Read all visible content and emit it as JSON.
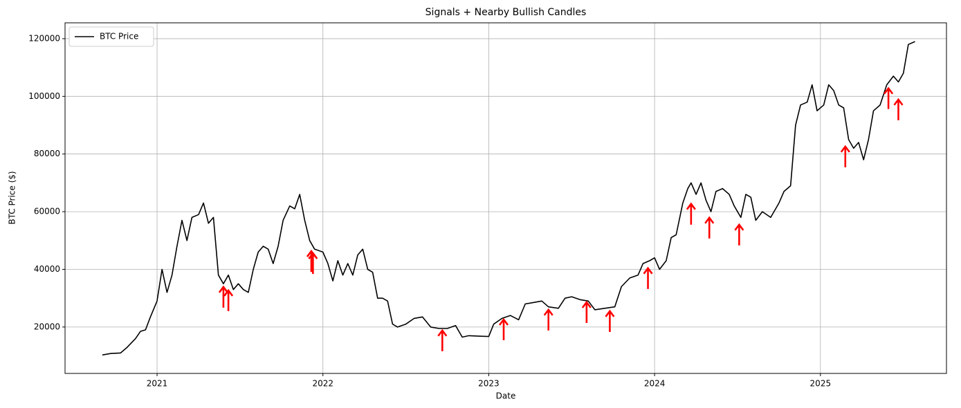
{
  "chart_data": {
    "type": "line",
    "title": "Signals + Nearby Bullish Candles",
    "x_label": "Date",
    "y_label": "BTC Price ($)",
    "xlim": [
      2020.445,
      2025.76
    ],
    "ylim": [
      3900,
      125500
    ],
    "xticks": [
      2021,
      2022,
      2023,
      2024,
      2025
    ],
    "yticks": [
      20000,
      40000,
      60000,
      80000,
      100000,
      120000
    ],
    "grid": true,
    "legend": "upper left",
    "series": [
      {
        "name": "BTC Price",
        "color": "#000000",
        "x": [
          2020.67,
          2020.72,
          2020.78,
          2020.82,
          2020.87,
          2020.9,
          2020.93,
          2020.96,
          2021.0,
          2021.03,
          2021.06,
          2021.09,
          2021.12,
          2021.15,
          2021.18,
          2021.21,
          2021.25,
          2021.28,
          2021.31,
          2021.34,
          2021.37,
          2021.4,
          2021.43,
          2021.46,
          2021.49,
          2021.52,
          2021.55,
          2021.58,
          2021.61,
          2021.64,
          2021.67,
          2021.7,
          2021.73,
          2021.76,
          2021.8,
          2021.83,
          2021.86,
          2021.89,
          2021.92,
          2021.95,
          2022.0,
          2022.03,
          2022.06,
          2022.09,
          2022.12,
          2022.15,
          2022.18,
          2022.21,
          2022.24,
          2022.27,
          2022.3,
          2022.33,
          2022.36,
          2022.39,
          2022.42,
          2022.45,
          2022.5,
          2022.55,
          2022.6,
          2022.65,
          2022.7,
          2022.75,
          2022.8,
          2022.84,
          2022.88,
          2022.95,
          2023.0,
          2023.03,
          2023.08,
          2023.13,
          2023.18,
          2023.22,
          2023.27,
          2023.32,
          2023.36,
          2023.42,
          2023.46,
          2023.5,
          2023.55,
          2023.6,
          2023.64,
          2023.7,
          2023.76,
          2023.8,
          2023.85,
          2023.9,
          2023.93,
          2023.97,
          2024.0,
          2024.03,
          2024.07,
          2024.1,
          2024.13,
          2024.17,
          2024.2,
          2024.22,
          2024.25,
          2024.28,
          2024.31,
          2024.34,
          2024.37,
          2024.41,
          2024.45,
          2024.48,
          2024.52,
          2024.55,
          2024.58,
          2024.61,
          2024.65,
          2024.7,
          2024.75,
          2024.78,
          2024.82,
          2024.85,
          2024.88,
          2024.92,
          2024.95,
          2024.98,
          2025.02,
          2025.05,
          2025.08,
          2025.11,
          2025.14,
          2025.17,
          2025.2,
          2025.23,
          2025.26,
          2025.29,
          2025.32,
          2025.36,
          2025.4,
          2025.44,
          2025.47,
          2025.5,
          2025.53,
          2025.57
        ],
        "values": [
          10300,
          10800,
          11000,
          13000,
          16000,
          18500,
          19000,
          23500,
          29000,
          40000,
          32000,
          38000,
          48000,
          57000,
          50000,
          58000,
          59000,
          63000,
          56000,
          58000,
          38000,
          35000,
          38000,
          33000,
          35000,
          33000,
          32000,
          40000,
          46000,
          48000,
          47000,
          42000,
          48000,
          57000,
          62000,
          61000,
          66000,
          57000,
          50000,
          47000,
          46000,
          42000,
          36000,
          43000,
          38000,
          42000,
          38000,
          45000,
          47000,
          40000,
          39000,
          30000,
          30000,
          29000,
          21000,
          20000,
          21000,
          23000,
          23500,
          20000,
          19500,
          19500,
          20500,
          16500,
          17000,
          16800,
          16700,
          21000,
          23000,
          24000,
          22500,
          28000,
          28500,
          29000,
          27000,
          26500,
          30000,
          30500,
          29500,
          29000,
          26000,
          26500,
          27000,
          34000,
          37000,
          38000,
          42000,
          43000,
          44000,
          40000,
          43000,
          51000,
          52000,
          63000,
          68000,
          70000,
          66000,
          70000,
          64000,
          60000,
          67000,
          68000,
          66000,
          62000,
          58000,
          66000,
          65000,
          57000,
          60000,
          58000,
          63000,
          67000,
          69000,
          90000,
          97000,
          98000,
          104000,
          95000,
          97000,
          104000,
          102000,
          97000,
          96000,
          85000,
          82000,
          84000,
          78000,
          85000,
          95000,
          97000,
          104000,
          107000,
          105000,
          108000,
          118000,
          119000
        ]
      }
    ],
    "signals": {
      "color": "#ff0000",
      "x": [
        2021.4,
        2021.43,
        2021.93,
        2021.94,
        2022.72,
        2023.09,
        2023.36,
        2023.59,
        2023.73,
        2023.96,
        2024.22,
        2024.33,
        2024.51,
        2025.15,
        2025.41,
        2025.47
      ],
      "values": [
        33900,
        32700,
        46300,
        45600,
        18800,
        22600,
        26000,
        28600,
        25500,
        40400,
        62700,
        57900,
        55500,
        82600,
        102800,
        98900
      ]
    }
  }
}
